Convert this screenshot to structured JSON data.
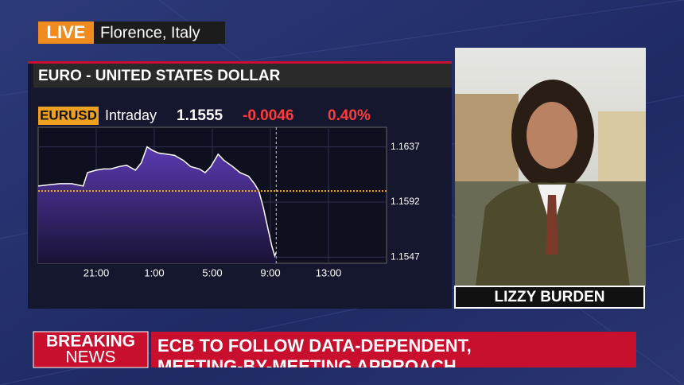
{
  "live_badge": "LIVE",
  "location": "Florence, Italy",
  "chart_data": {
    "type": "area",
    "title": "EURO - UNITED STATES DOLLAR",
    "ticker": "EURUSD",
    "period": "Intraday",
    "last": "1.1555",
    "change": "-0.0046",
    "change_pct": "0.40%",
    "x": [
      17.0,
      17.7,
      18.5,
      19.3,
      20.1,
      20.4,
      21.0,
      21.5,
      22.0,
      22.6,
      23.1,
      23.7,
      24.1,
      24.5,
      24.9,
      25.3,
      25.9,
      26.4,
      27.0,
      27.5,
      28.1,
      28.5,
      28.9,
      29.4,
      29.8,
      30.4,
      30.9,
      31.5,
      31.9,
      32.2,
      32.5,
      32.8,
      33.1,
      33.3,
      33.4
    ],
    "series": [
      {
        "name": "EURUSD",
        "color": "#ffffff",
        "values": [
          1.1605,
          1.1606,
          1.1607,
          1.1607,
          1.1605,
          1.1616,
          1.1618,
          1.1619,
          1.1619,
          1.1621,
          1.1622,
          1.1618,
          1.1624,
          1.1637,
          1.1634,
          1.1632,
          1.1631,
          1.163,
          1.1626,
          1.1621,
          1.1619,
          1.1616,
          1.1621,
          1.1631,
          1.1626,
          1.1621,
          1.1616,
          1.1613,
          1.1607,
          1.1601,
          1.1588,
          1.1572,
          1.1556,
          1.1548,
          1.1551
        ]
      }
    ],
    "reference_line": 1.1601,
    "xlim": [
      17,
      41
    ],
    "xticks": [
      {
        "value": 21,
        "label": "21:00"
      },
      {
        "value": 25,
        "label": "1:00"
      },
      {
        "value": 29,
        "label": "5:00"
      },
      {
        "value": 33,
        "label": "9:00"
      },
      {
        "value": 37,
        "label": "13:00"
      }
    ],
    "ylim": [
      1.1542,
      1.1653
    ],
    "yticks": [
      1.1637,
      1.1592,
      1.1547
    ],
    "grid": true
  },
  "name_plate": "LIZZY BURDEN",
  "lower_third": {
    "label_top": "BREAKING",
    "label_bottom": "NEWS",
    "headline_lines": [
      "ECB TO FOLLOW DATA-DEPENDENT,",
      "MEETING-BY-MEETING APPROACH"
    ]
  }
}
